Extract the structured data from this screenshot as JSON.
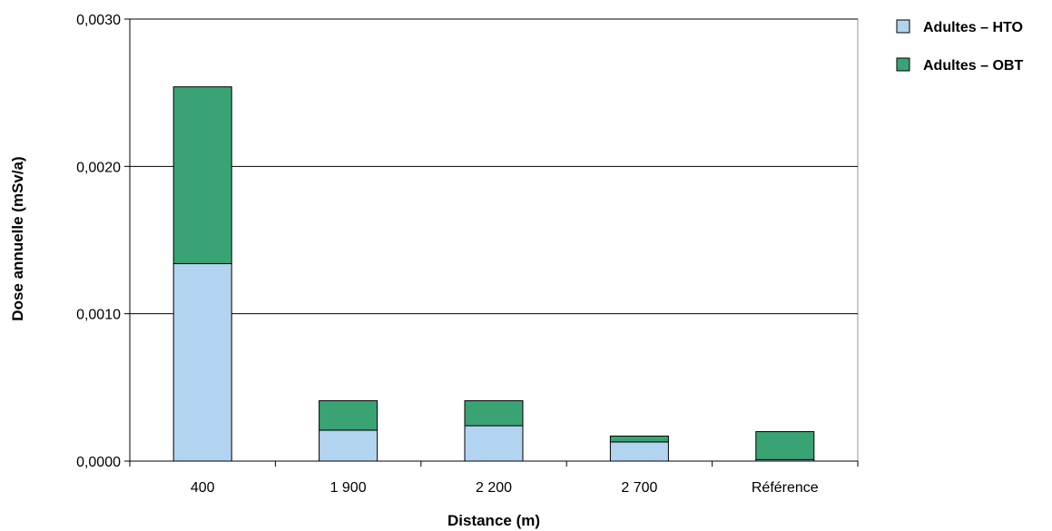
{
  "chart_data": {
    "type": "bar",
    "stacked": true,
    "categories": [
      "400",
      "1 900",
      "2 200",
      "2 700",
      "Référence"
    ],
    "series": [
      {
        "name": "Adultes – HTO",
        "color": "#b3d4f0",
        "values": [
          0.00134,
          0.00021,
          0.00024,
          0.00013,
          1e-05
        ]
      },
      {
        "name": "Adultes – OBT",
        "color": "#3aa374",
        "values": [
          0.0012,
          0.0002,
          0.00017,
          4e-05,
          0.00019
        ]
      }
    ],
    "xlabel": "Distance (m)",
    "ylabel": "Dose annuelle (mSv/a)",
    "ylim": [
      0,
      0.003
    ],
    "yticks": [
      "0,0000",
      "0,0010",
      "0,0020",
      "0,0030"
    ],
    "ytick_values": [
      0,
      0.001,
      0.002,
      0.003
    ],
    "grid": true,
    "legend_position": "right"
  }
}
